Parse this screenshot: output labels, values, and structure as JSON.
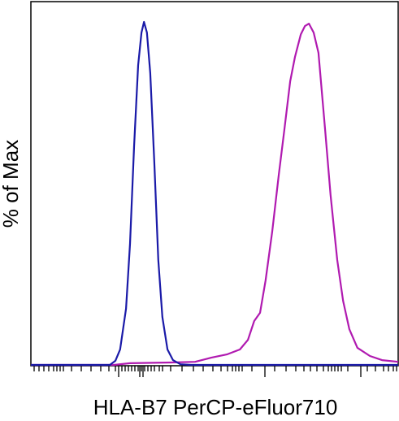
{
  "chart_data": {
    "type": "line",
    "x_label": "HLA-B7  PerCP-eFluor710",
    "y_label": "% of Max",
    "xlim": [
      0,
      100
    ],
    "ylim": [
      0,
      100
    ],
    "series": [
      {
        "color": "#1a1aa8",
        "x": [
          0,
          21.5,
          23,
          24.3,
          25.9,
          27,
          28.1,
          29.2,
          30.1,
          30.8,
          31.6,
          32.5,
          33.6,
          34.7,
          35.8,
          37.2,
          38.7,
          40.7,
          43.6,
          100
        ],
        "values": [
          0,
          0,
          1.2,
          4.5,
          16.4,
          35.3,
          63.7,
          87.4,
          96.9,
          100,
          96.9,
          85.1,
          59,
          30.6,
          14,
          4.5,
          1.4,
          0.2,
          0,
          0
        ]
      },
      {
        "color": "#b01ab0",
        "x": [
          0,
          22.6,
          27,
          38.1,
          44.7,
          49.1,
          53.5,
          56.9,
          59.1,
          60.8,
          62.4,
          63.9,
          65.7,
          67.5,
          69,
          70.6,
          71.9,
          73.5,
          74.6,
          75.7,
          77,
          78.3,
          80.1,
          81.6,
          83.4,
          85,
          86.7,
          88.9,
          92.3,
          95.6,
          100
        ],
        "values": [
          0,
          0,
          0.5,
          0.7,
          0.9,
          2.1,
          3.1,
          4.5,
          7.3,
          12.8,
          15.2,
          24.6,
          38.9,
          55.5,
          68.5,
          82.7,
          89.8,
          96.4,
          98.8,
          99.5,
          96.9,
          91,
          68.5,
          49.5,
          30.6,
          18.7,
          10.4,
          5,
          2.6,
          1.4,
          0.9
        ]
      }
    ]
  }
}
